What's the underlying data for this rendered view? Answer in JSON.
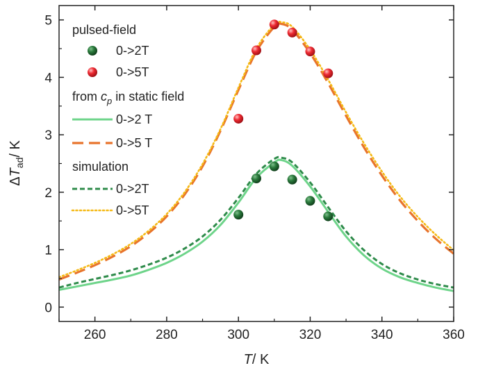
{
  "chart_data": {
    "type": "scatter",
    "xlabel": {
      "var": "T",
      "unit": "/ K"
    },
    "ylabel": {
      "prefix": "Δ",
      "var": "T",
      "sub": "ad",
      "unit": "/ K"
    },
    "xlim": [
      250,
      360
    ],
    "ylim": [
      -0.25,
      5.25
    ],
    "xticks": [
      260,
      280,
      300,
      320,
      340,
      360
    ],
    "yticks": [
      0,
      1,
      2,
      3,
      4,
      5
    ],
    "grid": false,
    "legend_position": "top-left",
    "legend": {
      "group_pulsed": "pulsed-field",
      "group_static": {
        "prefix": "from ",
        "var": "c",
        "sub": "p",
        "suffix": " in static field"
      },
      "group_sim": "simulation"
    },
    "series": [
      {
        "id": "pulsed_2T",
        "name": "0->2T",
        "kind": "marker",
        "color": "#1e5c2a",
        "x": [
          300,
          305,
          310,
          315,
          320,
          325
        ],
        "y": [
          1.61,
          2.24,
          2.45,
          2.22,
          1.85,
          1.58
        ]
      },
      {
        "id": "pulsed_5T",
        "name": "0->5T",
        "kind": "marker",
        "color": "#e8202a",
        "x": [
          300,
          305,
          310,
          315,
          320,
          325
        ],
        "y": [
          3.28,
          4.47,
          4.92,
          4.78,
          4.45,
          4.07
        ]
      },
      {
        "id": "static_2T",
        "name": "0->2 T",
        "kind": "line",
        "dash": "solid",
        "color": "#6ed48a",
        "x": [
          250,
          255,
          260,
          265,
          270,
          275,
          280,
          285,
          290,
          295,
          300,
          305,
          310,
          312,
          315,
          320,
          325,
          330,
          335,
          340,
          345,
          350,
          355,
          360
        ],
        "y": [
          0.3,
          0.36,
          0.42,
          0.48,
          0.55,
          0.65,
          0.77,
          0.93,
          1.14,
          1.43,
          1.82,
          2.25,
          2.52,
          2.56,
          2.46,
          2.1,
          1.66,
          1.23,
          0.9,
          0.67,
          0.52,
          0.42,
          0.34,
          0.28
        ]
      },
      {
        "id": "static_5T",
        "name": "0->5 T",
        "kind": "line",
        "dash": "long",
        "color": "#e8742c",
        "x": [
          250,
          255,
          260,
          265,
          270,
          275,
          280,
          285,
          290,
          295,
          300,
          305,
          310,
          312,
          315,
          320,
          325,
          330,
          335,
          340,
          345,
          350,
          355,
          360
        ],
        "y": [
          0.48,
          0.6,
          0.73,
          0.88,
          1.06,
          1.29,
          1.58,
          1.96,
          2.45,
          3.07,
          3.78,
          4.45,
          4.88,
          4.93,
          4.83,
          4.42,
          3.9,
          3.33,
          2.78,
          2.29,
          1.86,
          1.5,
          1.19,
          0.93
        ]
      },
      {
        "id": "sim_2T",
        "name": "0->2T",
        "kind": "line",
        "dash": "short",
        "color": "#2e8b4a",
        "x": [
          250,
          255,
          260,
          265,
          270,
          275,
          280,
          285,
          290,
          295,
          300,
          305,
          310,
          312,
          315,
          320,
          325,
          330,
          335,
          340,
          345,
          350,
          355,
          360
        ],
        "y": [
          0.34,
          0.42,
          0.49,
          0.56,
          0.64,
          0.74,
          0.86,
          1.02,
          1.23,
          1.52,
          1.9,
          2.32,
          2.58,
          2.6,
          2.52,
          2.17,
          1.74,
          1.32,
          0.99,
          0.75,
          0.59,
          0.48,
          0.4,
          0.34
        ]
      },
      {
        "id": "sim_5T",
        "name": "0->5T",
        "kind": "line",
        "dash": "dot",
        "color": "#f5b914",
        "x": [
          250,
          255,
          260,
          265,
          270,
          275,
          280,
          285,
          290,
          295,
          300,
          305,
          310,
          312,
          315,
          320,
          325,
          330,
          335,
          340,
          345,
          350,
          355,
          360
        ],
        "y": [
          0.52,
          0.64,
          0.77,
          0.92,
          1.1,
          1.33,
          1.62,
          2.0,
          2.49,
          3.1,
          3.82,
          4.5,
          4.92,
          4.96,
          4.88,
          4.48,
          3.96,
          3.39,
          2.85,
          2.36,
          1.93,
          1.57,
          1.26,
          0.99
        ]
      }
    ]
  }
}
